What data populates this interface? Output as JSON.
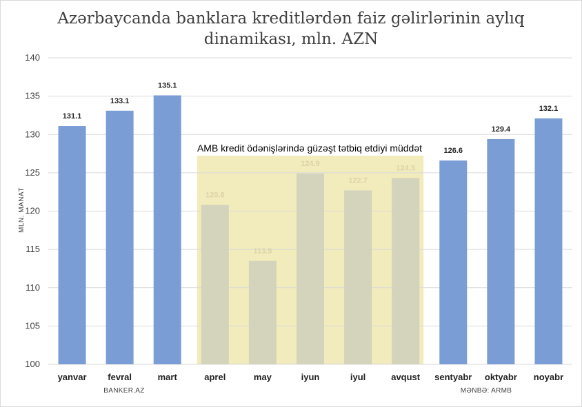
{
  "chart_data": {
    "type": "bar",
    "title": "Azərbaycanda banklara kreditlərdən faiz gəlirlərinin aylıq dinamikası, mln. AZN",
    "ylabel": "MLN. MANAT",
    "xlabel": "",
    "ylim": [
      100,
      140
    ],
    "yticks": [
      100,
      105,
      110,
      115,
      120,
      125,
      130,
      135,
      140
    ],
    "grid": true,
    "categories": [
      "yanvar",
      "fevral",
      "mart",
      "aprel",
      "may",
      "iyun",
      "iyul",
      "avqust",
      "sentyabr",
      "oktyabr",
      "noyabr"
    ],
    "values": [
      131.1,
      133.1,
      135.1,
      120.8,
      113.5,
      124.9,
      122.7,
      124.3,
      126.6,
      129.4,
      132.1
    ],
    "labels": [
      "131.1",
      "133.1",
      "135.1",
      "120.8",
      "113.5",
      "124.9",
      "122.7",
      "124.3",
      "126.6",
      "129.4",
      "132.1"
    ],
    "highlight": {
      "text": "AMB kredit ödənişlərində güzəşt tətbiq etdiyi müddət",
      "start_category": "aprel",
      "end_category": "avqust"
    },
    "colors": {
      "bar": "#7a9dd6",
      "bar_highlighted": "#d4d3bb",
      "highlight_band": "#f2ebbc",
      "label": "#262626",
      "label_highlighted": "#dcd4a8",
      "grid": "#d9d9d9"
    }
  },
  "footer": {
    "left": "BANKER.AZ",
    "right": "MƏNBƏ: ARMB"
  }
}
